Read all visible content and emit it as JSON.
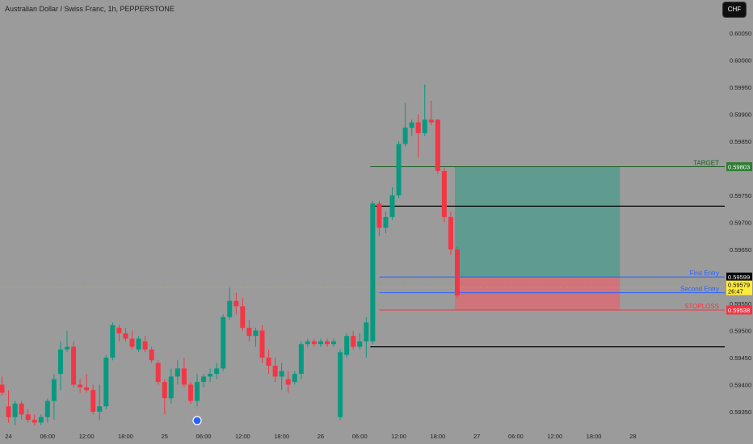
{
  "header": {
    "title": "Australian Dollar / Swiss Franc, 1h, PEPPERSTONE",
    "currency_button": "CHF"
  },
  "colors": {
    "background": "#9b9b9b",
    "up": "#089981",
    "down": "#f23645",
    "target_line": "#1b5e20",
    "entry_line": "#2962ff",
    "stoploss_line": "#f23645",
    "level_line": "#000000",
    "profit_zone": "#5f9c8f",
    "loss_zone": "#d0737a",
    "axis_text": "#1e1e1e"
  },
  "chart_data": {
    "type": "candlestick",
    "symbol": "Australian Dollar / Swiss Franc",
    "timeframe": "1h",
    "source": "PEPPERSTONE",
    "y_axis": {
      "ticks": [
        "0.60050",
        "0.60000",
        "0.59950",
        "0.59900",
        "0.59850",
        "0.59800",
        "0.59750",
        "0.59700",
        "0.59650",
        "0.59600",
        "0.59550",
        "0.59500",
        "0.59450",
        "0.59400",
        "0.59350"
      ],
      "range": [
        0.59325,
        0.6008
      ]
    },
    "x_axis": {
      "labels": [
        "24",
        "06:00",
        "12:00",
        "18:00",
        "25",
        "06:00",
        "12:00",
        "18:00",
        "26",
        "06:00",
        "12:00",
        "18:00",
        "27",
        "06:00",
        "12:00",
        "18:00",
        "28"
      ]
    },
    "candles": [
      {
        "o": 0.594,
        "h": 0.59415,
        "l": 0.5938,
        "c": 0.59385
      },
      {
        "o": 0.5936,
        "h": 0.5939,
        "l": 0.5933,
        "c": 0.5934
      },
      {
        "o": 0.5934,
        "h": 0.5937,
        "l": 0.59325,
        "c": 0.59365
      },
      {
        "o": 0.59365,
        "h": 0.5937,
        "l": 0.59335,
        "c": 0.59345
      },
      {
        "o": 0.59345,
        "h": 0.59355,
        "l": 0.5933,
        "c": 0.59335
      },
      {
        "o": 0.59335,
        "h": 0.59345,
        "l": 0.59325,
        "c": 0.5933
      },
      {
        "o": 0.5933,
        "h": 0.59345,
        "l": 0.59325,
        "c": 0.5934
      },
      {
        "o": 0.5934,
        "h": 0.59375,
        "l": 0.5933,
        "c": 0.5937
      },
      {
        "o": 0.5937,
        "h": 0.5942,
        "l": 0.59335,
        "c": 0.5941
      },
      {
        "o": 0.5942,
        "h": 0.5948,
        "l": 0.5939,
        "c": 0.59465
      },
      {
        "o": 0.59465,
        "h": 0.595,
        "l": 0.5946,
        "c": 0.5947
      },
      {
        "o": 0.5947,
        "h": 0.5948,
        "l": 0.59395,
        "c": 0.594
      },
      {
        "o": 0.594,
        "h": 0.5941,
        "l": 0.59385,
        "c": 0.59395
      },
      {
        "o": 0.59395,
        "h": 0.5942,
        "l": 0.59385,
        "c": 0.5939
      },
      {
        "o": 0.5939,
        "h": 0.594,
        "l": 0.59345,
        "c": 0.5935
      },
      {
        "o": 0.5935,
        "h": 0.594,
        "l": 0.59335,
        "c": 0.5936
      },
      {
        "o": 0.5936,
        "h": 0.59455,
        "l": 0.59355,
        "c": 0.5945
      },
      {
        "o": 0.5945,
        "h": 0.59515,
        "l": 0.59445,
        "c": 0.5951
      },
      {
        "o": 0.59505,
        "h": 0.5951,
        "l": 0.5948,
        "c": 0.59495
      },
      {
        "o": 0.59495,
        "h": 0.59505,
        "l": 0.5948,
        "c": 0.59485
      },
      {
        "o": 0.59485,
        "h": 0.595,
        "l": 0.59465,
        "c": 0.5947
      },
      {
        "o": 0.59465,
        "h": 0.5949,
        "l": 0.5946,
        "c": 0.59485
      },
      {
        "o": 0.5948,
        "h": 0.5949,
        "l": 0.5946,
        "c": 0.59465
      },
      {
        "o": 0.59465,
        "h": 0.5947,
        "l": 0.5944,
        "c": 0.59445
      },
      {
        "o": 0.5944,
        "h": 0.59445,
        "l": 0.594,
        "c": 0.59405
      },
      {
        "o": 0.59405,
        "h": 0.5941,
        "l": 0.59345,
        "c": 0.59375
      },
      {
        "o": 0.59375,
        "h": 0.5943,
        "l": 0.59365,
        "c": 0.59415
      },
      {
        "o": 0.59415,
        "h": 0.59445,
        "l": 0.594,
        "c": 0.5943
      },
      {
        "o": 0.5943,
        "h": 0.5945,
        "l": 0.59395,
        "c": 0.594
      },
      {
        "o": 0.594,
        "h": 0.59405,
        "l": 0.59365,
        "c": 0.5937
      },
      {
        "o": 0.5937,
        "h": 0.5942,
        "l": 0.5936,
        "c": 0.59405
      },
      {
        "o": 0.59405,
        "h": 0.5942,
        "l": 0.59395,
        "c": 0.59415
      },
      {
        "o": 0.59415,
        "h": 0.5943,
        "l": 0.59405,
        "c": 0.5942
      },
      {
        "o": 0.5942,
        "h": 0.5944,
        "l": 0.5941,
        "c": 0.5943
      },
      {
        "o": 0.5943,
        "h": 0.5953,
        "l": 0.59425,
        "c": 0.59525
      },
      {
        "o": 0.59525,
        "h": 0.5958,
        "l": 0.5952,
        "c": 0.59555
      },
      {
        "o": 0.59555,
        "h": 0.5957,
        "l": 0.5953,
        "c": 0.59545
      },
      {
        "o": 0.59545,
        "h": 0.5956,
        "l": 0.595,
        "c": 0.59505
      },
      {
        "o": 0.59505,
        "h": 0.5952,
        "l": 0.5948,
        "c": 0.5949
      },
      {
        "o": 0.5949,
        "h": 0.59505,
        "l": 0.5947,
        "c": 0.595
      },
      {
        "o": 0.595,
        "h": 0.5951,
        "l": 0.5944,
        "c": 0.5945
      },
      {
        "o": 0.5945,
        "h": 0.59465,
        "l": 0.5942,
        "c": 0.59435
      },
      {
        "o": 0.59435,
        "h": 0.5945,
        "l": 0.59405,
        "c": 0.59415
      },
      {
        "o": 0.59415,
        "h": 0.5944,
        "l": 0.5939,
        "c": 0.59425
      },
      {
        "o": 0.5941,
        "h": 0.59425,
        "l": 0.59385,
        "c": 0.594
      },
      {
        "o": 0.59405,
        "h": 0.59425,
        "l": 0.594,
        "c": 0.5942
      },
      {
        "o": 0.5942,
        "h": 0.5948,
        "l": 0.5941,
        "c": 0.59475
      },
      {
        "o": 0.59475,
        "h": 0.59485,
        "l": 0.5947,
        "c": 0.5948
      },
      {
        "o": 0.5948,
        "h": 0.59485,
        "l": 0.5947,
        "c": 0.59475
      },
      {
        "o": 0.59475,
        "h": 0.59485,
        "l": 0.5947,
        "c": 0.5948
      },
      {
        "o": 0.5948,
        "h": 0.59485,
        "l": 0.5947,
        "c": 0.59475
      },
      {
        "o": 0.59475,
        "h": 0.59485,
        "l": 0.5947,
        "c": 0.5948
      },
      {
        "o": 0.5934,
        "h": 0.59465,
        "l": 0.59335,
        "c": 0.5946
      },
      {
        "o": 0.59455,
        "h": 0.59495,
        "l": 0.5945,
        "c": 0.5949
      },
      {
        "o": 0.5949,
        "h": 0.595,
        "l": 0.59465,
        "c": 0.5947
      },
      {
        "o": 0.5947,
        "h": 0.59495,
        "l": 0.59465,
        "c": 0.5948
      },
      {
        "o": 0.5948,
        "h": 0.59525,
        "l": 0.5945,
        "c": 0.59515
      },
      {
        "o": 0.5948,
        "h": 0.5974,
        "l": 0.59475,
        "c": 0.59735
      },
      {
        "o": 0.59735,
        "h": 0.5974,
        "l": 0.59675,
        "c": 0.5969
      },
      {
        "o": 0.5969,
        "h": 0.5972,
        "l": 0.5968,
        "c": 0.5971
      },
      {
        "o": 0.5971,
        "h": 0.59765,
        "l": 0.59705,
        "c": 0.5975
      },
      {
        "o": 0.5975,
        "h": 0.5985,
        "l": 0.59745,
        "c": 0.59845
      },
      {
        "o": 0.59845,
        "h": 0.5992,
        "l": 0.5984,
        "c": 0.59875
      },
      {
        "o": 0.59875,
        "h": 0.5989,
        "l": 0.5986,
        "c": 0.59885
      },
      {
        "o": 0.59885,
        "h": 0.599,
        "l": 0.5982,
        "c": 0.59865
      },
      {
        "o": 0.59865,
        "h": 0.59955,
        "l": 0.5986,
        "c": 0.5989
      },
      {
        "o": 0.5989,
        "h": 0.59925,
        "l": 0.5988,
        "c": 0.59885
      },
      {
        "o": 0.5989,
        "h": 0.5989,
        "l": 0.5979,
        "c": 0.59795
      },
      {
        "o": 0.59795,
        "h": 0.598,
        "l": 0.597,
        "c": 0.5971
      },
      {
        "o": 0.5971,
        "h": 0.5972,
        "l": 0.5964,
        "c": 0.5965
      },
      {
        "o": 0.5965,
        "h": 0.59655,
        "l": 0.5956,
        "c": 0.59565
      }
    ],
    "annotations": [
      {
        "label": "TARGET",
        "price": 0.59803,
        "price_label": "0.59803"
      },
      {
        "label": "First Entry",
        "price": 0.59599,
        "price_label": "0.59599"
      },
      {
        "label": "Second Entry",
        "price": 0.5957
      },
      {
        "label": "STOPLOSS",
        "price": 0.59538,
        "price_label": "0.59538"
      }
    ],
    "horizontal_levels": [
      0.5973,
      0.5947
    ],
    "current_price": {
      "price": 0.59579,
      "label": "0.59579",
      "countdown": "26:47"
    },
    "crosshair_price": 0.5958,
    "position": {
      "entry": 0.59599,
      "target": 0.59803,
      "stop": 0.59538,
      "start_candle": 70,
      "end_candle": 95
    }
  }
}
